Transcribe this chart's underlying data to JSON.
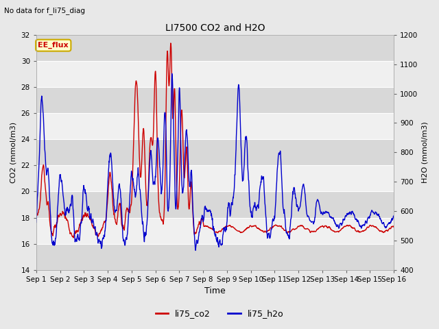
{
  "title": "LI7500 CO2 and H2O",
  "subtitle": "No data for f_li75_diag",
  "xlabel": "Time",
  "ylabel_left": "CO2 (mmol/m3)",
  "ylabel_right": "H2O (mmol/m3)",
  "ylim_left": [
    14,
    32
  ],
  "ylim_right": [
    400,
    1200
  ],
  "yticks_left": [
    14,
    16,
    18,
    20,
    22,
    24,
    26,
    28,
    30,
    32
  ],
  "yticks_right": [
    400,
    500,
    600,
    700,
    800,
    900,
    1000,
    1100,
    1200
  ],
  "xtick_labels": [
    "Sep 1",
    "Sep 2",
    "Sep 3",
    "Sep 4",
    "Sep 5",
    "Sep 6",
    "Sep 7",
    "Sep 8",
    "Sep 9",
    "Sep 10",
    "Sep 11",
    "Sep 12",
    "Sep 13",
    "Sep 14",
    "Sep 15",
    "Sep 16"
  ],
  "color_co2": "#cc0000",
  "color_h2o": "#0000cc",
  "legend_label_co2": "li75_co2",
  "legend_label_h2o": "li75_h2o",
  "annotation_text": "EE_flux",
  "bg_color": "#e8e8e8",
  "band_color_dark": "#d8d8d8",
  "band_color_light": "#f0f0f0",
  "linewidth": 1.0,
  "n_days": 15
}
